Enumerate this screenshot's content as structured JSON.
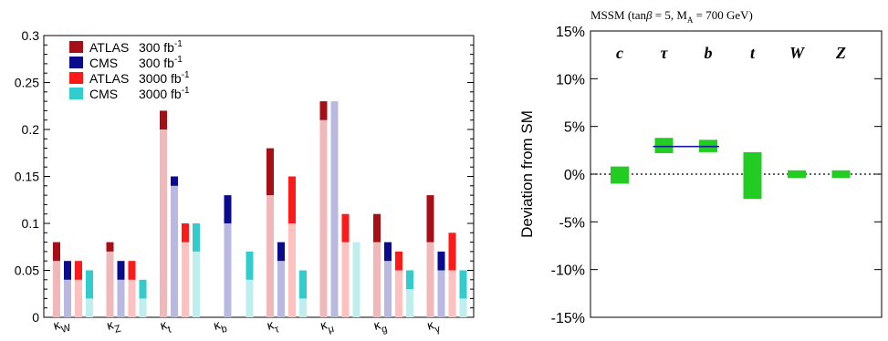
{
  "chart_data": [
    {
      "type": "bar",
      "title": "",
      "xlabel": "",
      "ylabel": "",
      "ylim": [
        0,
        0.3
      ],
      "yticks": [
        "0",
        "0.05",
        "0.1",
        "0.15",
        "0.2",
        "0.25",
        "0.3"
      ],
      "categories": [
        {
          "sym": "κ",
          "sub": "W"
        },
        {
          "sym": "κ",
          "sub": "Z"
        },
        {
          "sym": "κ",
          "sub": "t"
        },
        {
          "sym": "κ",
          "sub": "b"
        },
        {
          "sym": "κ",
          "sub": "τ"
        },
        {
          "sym": "κ",
          "sub": "μ"
        },
        {
          "sym": "κ",
          "sub": "g"
        },
        {
          "sym": "κ",
          "sub": "γ"
        }
      ],
      "legend": [
        {
          "name": "ATLAS",
          "value": "300 fb",
          "sup": "-1"
        },
        {
          "name": "CMS",
          "value": "300 fb",
          "sup": "-1"
        },
        {
          "name": "ATLAS",
          "value": "3000 fb",
          "sup": "-1"
        },
        {
          "name": "CMS",
          "value": "3000 fb",
          "sup": "-1"
        }
      ],
      "series": [
        {
          "label": "ATLAS 300 fb-1",
          "color": "#a50f15",
          "light_color": "#f0b8b8",
          "low": [
            0.06,
            0.07,
            0.2,
            null,
            0.13,
            0.21,
            0.08,
            0.08
          ],
          "high": [
            0.08,
            0.08,
            0.22,
            null,
            0.18,
            0.23,
            0.11,
            0.13
          ]
        },
        {
          "label": "CMS 300 fb-1",
          "color": "#0a0a8c",
          "light_color": "#b8b8e0",
          "low": [
            0.04,
            0.04,
            0.14,
            0.1,
            0.06,
            0.23,
            0.06,
            0.05
          ],
          "high": [
            0.06,
            0.06,
            0.15,
            0.13,
            0.08,
            0.23,
            0.08,
            0.07
          ]
        },
        {
          "label": "ATLAS 3000 fb-1",
          "color": "#ff1a1a",
          "light_color": "#ffc0c0",
          "low": [
            0.04,
            0.04,
            0.08,
            null,
            0.1,
            0.08,
            0.05,
            0.05
          ],
          "high": [
            0.06,
            0.06,
            0.1,
            null,
            0.15,
            0.11,
            0.07,
            0.09
          ]
        },
        {
          "label": "CMS 3000 fb-1",
          "color": "#33cccc",
          "light_color": "#bfeeee",
          "low": [
            0.02,
            0.02,
            0.07,
            0.04,
            0.02,
            0.08,
            0.03,
            0.02
          ],
          "high": [
            0.05,
            0.04,
            0.1,
            0.07,
            0.05,
            0.08,
            0.05,
            0.05
          ]
        }
      ],
      "grid": false,
      "legend_position": "top-left"
    },
    {
      "type": "box",
      "title_parts": {
        "pre": "MSSM (tan",
        "beta": "β",
        "mid": " = 5, M",
        "sub": "A",
        "post": " = 700 GeV)"
      },
      "xlabel": "",
      "ylabel": "Deviation from SM",
      "ylim": [
        -15,
        15
      ],
      "yticks": [
        "-15%",
        "-10%",
        "-5%",
        "0%",
        "5%",
        "10%",
        "15%"
      ],
      "categories": [
        "c",
        "τ",
        "b",
        "t",
        "W",
        "Z"
      ],
      "ranges": [
        {
          "category": "c",
          "low": -1.0,
          "high": 0.8,
          "line": null
        },
        {
          "category": "τ",
          "low": 2.2,
          "high": 3.8,
          "line": 2.9
        },
        {
          "category": "b",
          "low": 2.3,
          "high": 3.6,
          "line": 2.9
        },
        {
          "category": "t",
          "low": -2.6,
          "high": 2.3,
          "line": null
        },
        {
          "category": "W",
          "low": -0.4,
          "high": 0.4,
          "line": null
        },
        {
          "category": "Z",
          "low": -0.4,
          "high": 0.4,
          "line": null
        }
      ],
      "colors": {
        "box": "#22cc22",
        "line": "#1a1a99",
        "zero_line": "#000000"
      },
      "grid": false
    }
  ]
}
